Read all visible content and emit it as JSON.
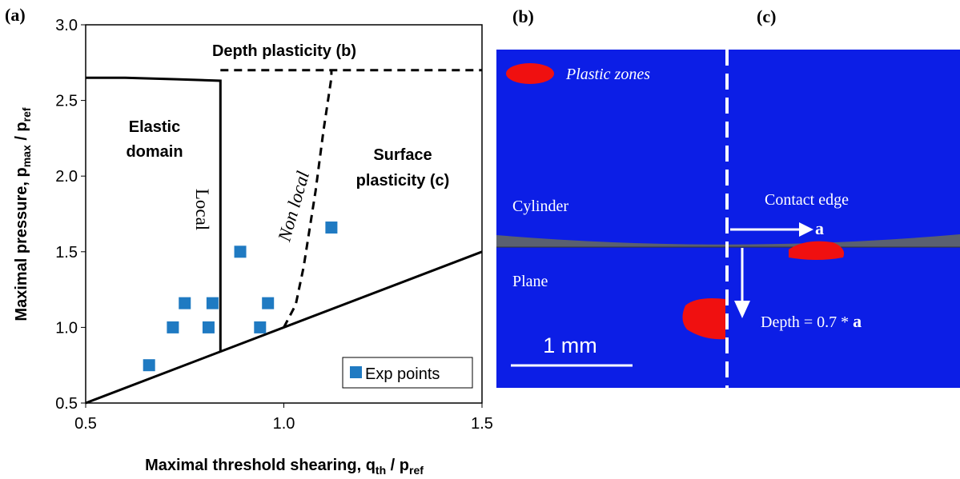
{
  "chart_data": {
    "type": "scatter",
    "panel_label": "(a)",
    "x_label_parts": [
      "Maximal threshold  shearing,  q",
      "th",
      " / p",
      "ref"
    ],
    "y_label_parts": [
      "Maximal pressure, p",
      "max",
      " / p",
      "ref"
    ],
    "xlim": [
      0.5,
      1.5
    ],
    "ylim": [
      0.5,
      3.0
    ],
    "xticks": [
      0.5,
      {
        "value": 1,
        "label": "1.0"
      },
      1.5
    ],
    "yticks": [
      0.5,
      {
        "value": 1,
        "label": "1.0"
      },
      1.5,
      {
        "value": 2,
        "label": "2.0"
      },
      2.5,
      {
        "value": 3,
        "label": "3.0"
      }
    ],
    "grid": false,
    "legend": "lower right",
    "series": [
      {
        "name": "Exp points",
        "type": "scatter",
        "color": "#1f7ac2",
        "x": [
          0.66,
          0.72,
          0.75,
          0.82,
          0.81,
          0.89,
          0.94,
          0.96,
          1.12
        ],
        "y": [
          0.75,
          1.0,
          1.16,
          1.16,
          1.0,
          1.5,
          1.0,
          1.16,
          1.66
        ]
      },
      {
        "type": "line",
        "color": "#000000",
        "dashed": false,
        "x": [
          0.5,
          0.6,
          0.73,
          0.84,
          0.84
        ],
        "y": [
          2.65,
          2.65,
          2.64,
          2.63,
          0.84
        ]
      },
      {
        "type": "line",
        "color": "#000000",
        "dashed": false,
        "x": [
          0.5,
          1.5
        ],
        "y": [
          0.5,
          1.5
        ]
      },
      {
        "type": "line",
        "color": "#000000",
        "dashed": true,
        "x": [
          0.84,
          1.5
        ],
        "y": [
          2.7,
          2.7
        ]
      },
      {
        "type": "line",
        "color": "#000000",
        "dashed": true,
        "x": [
          1.0,
          1.03,
          1.05,
          1.08,
          1.1,
          1.12,
          1.12
        ],
        "y": [
          1.0,
          1.15,
          1.4,
          1.9,
          2.3,
          2.65,
          2.7
        ]
      }
    ],
    "annotations": [
      "Depth plasticity (b)",
      "Elastic",
      "domain",
      "Surface",
      "plasticity (c)",
      "Local",
      "Non local"
    ]
  },
  "figure": {
    "label_b": "(b)",
    "label_c": "(c)",
    "plastic_zones": "Plastic zones",
    "cylinder": "Cylinder",
    "contact_edge": "Contact edge",
    "a": "a",
    "plane": "Plane",
    "depth": "Depth  = 0.7 * ",
    "depth_a": "a",
    "scale": "1 mm"
  }
}
